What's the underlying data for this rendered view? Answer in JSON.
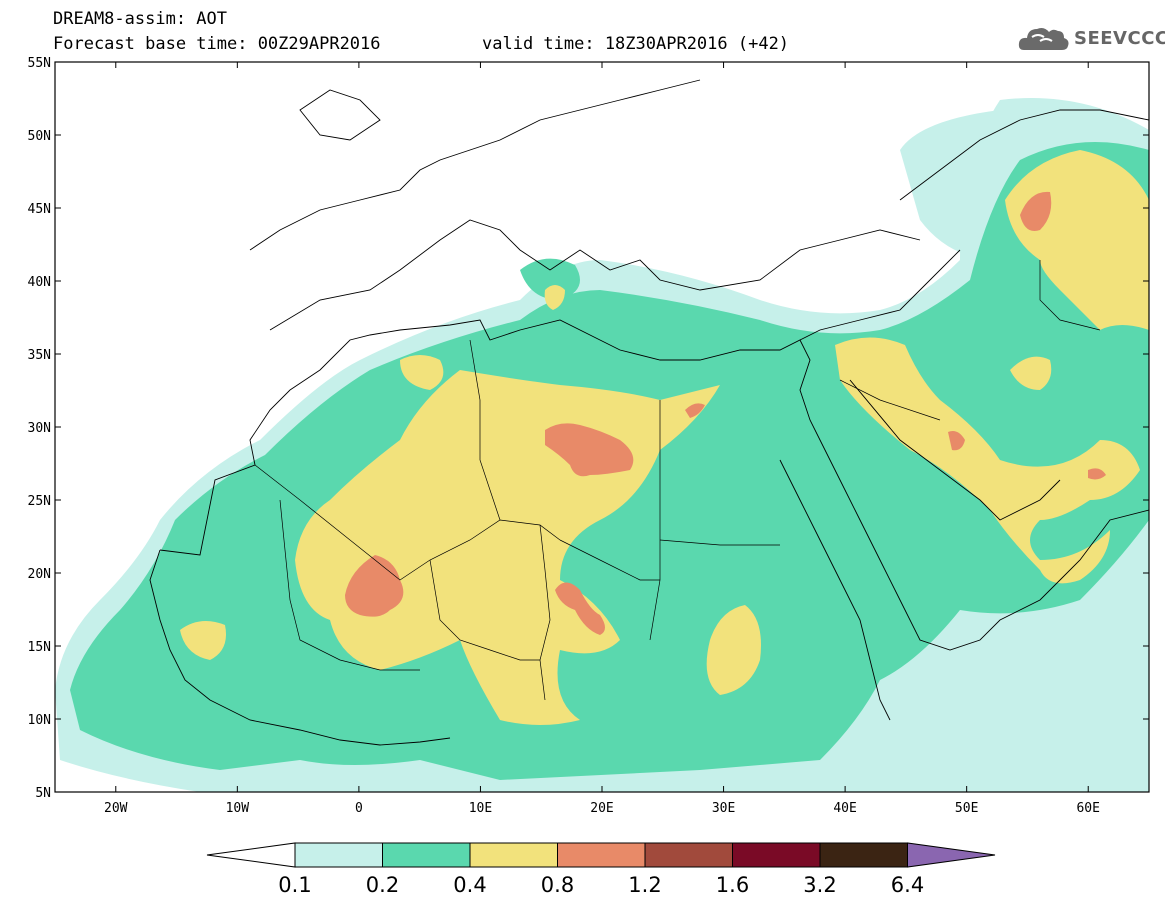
{
  "header": {
    "line1": "DREAM8-assim: AOT",
    "line2": "Forecast base time: 00Z29APR2016",
    "valid": "valid time: 18Z30APR2016 (+42)",
    "logo_text": "SEEVCCC",
    "logo_icon": "cloud-icon"
  },
  "map": {
    "lon_range": [
      -25,
      65
    ],
    "lat_range": [
      5,
      55
    ],
    "lat_ticks": [
      "55N",
      "50N",
      "45N",
      "40N",
      "35N",
      "30N",
      "25N",
      "20N",
      "15N",
      "10N",
      "5N"
    ],
    "lon_ticks": [
      "20W",
      "10W",
      "0",
      "10E",
      "20E",
      "30E",
      "40E",
      "50E",
      "60E"
    ],
    "field": "Aerosol Optical Thickness"
  },
  "colorbar": {
    "labels": [
      "0.1",
      "0.2",
      "0.4",
      "0.8",
      "1.2",
      "1.6",
      "3.2",
      "6.4"
    ],
    "colors": [
      "#c6f0ea",
      "#5ad8ae",
      "#f2e27c",
      "#e88a68",
      "#a14a3c",
      "#7a0a26",
      "#3b2413",
      "#8a66b0"
    ]
  }
}
